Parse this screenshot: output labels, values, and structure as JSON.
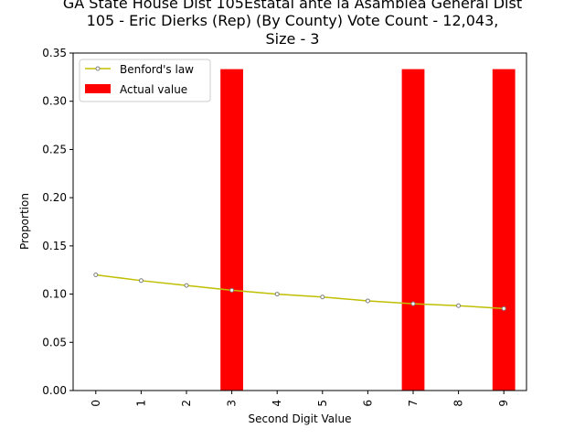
{
  "chart_data": {
    "type": "bar",
    "title_lines": [
      "GA State House Dist 105Estatal ante la Asamblea General Dist",
      "105 - Eric Dierks (Rep) (By County) Vote Count - 12,043,",
      "Size - 3"
    ],
    "xlabel": "Second Digit Value",
    "ylabel": "Proportion",
    "categories": [
      "0",
      "1",
      "2",
      "3",
      "4",
      "5",
      "6",
      "7",
      "8",
      "9"
    ],
    "ylim": [
      0,
      0.35
    ],
    "yticks": [
      "0.00",
      "0.05",
      "0.10",
      "0.15",
      "0.20",
      "0.25",
      "0.30",
      "0.35"
    ],
    "series": [
      {
        "name": "Benford's law",
        "type": "line",
        "color": "#bfbf00",
        "values": [
          0.12,
          0.114,
          0.109,
          0.104,
          0.1,
          0.097,
          0.093,
          0.09,
          0.088,
          0.085
        ]
      },
      {
        "name": "Actual value",
        "type": "bar",
        "color": "#ff0000",
        "values": [
          0,
          0,
          0,
          0.3333,
          0,
          0,
          0,
          0.3333,
          0,
          0.3333
        ]
      }
    ],
    "legend_position": "upper-left",
    "grid": false
  }
}
